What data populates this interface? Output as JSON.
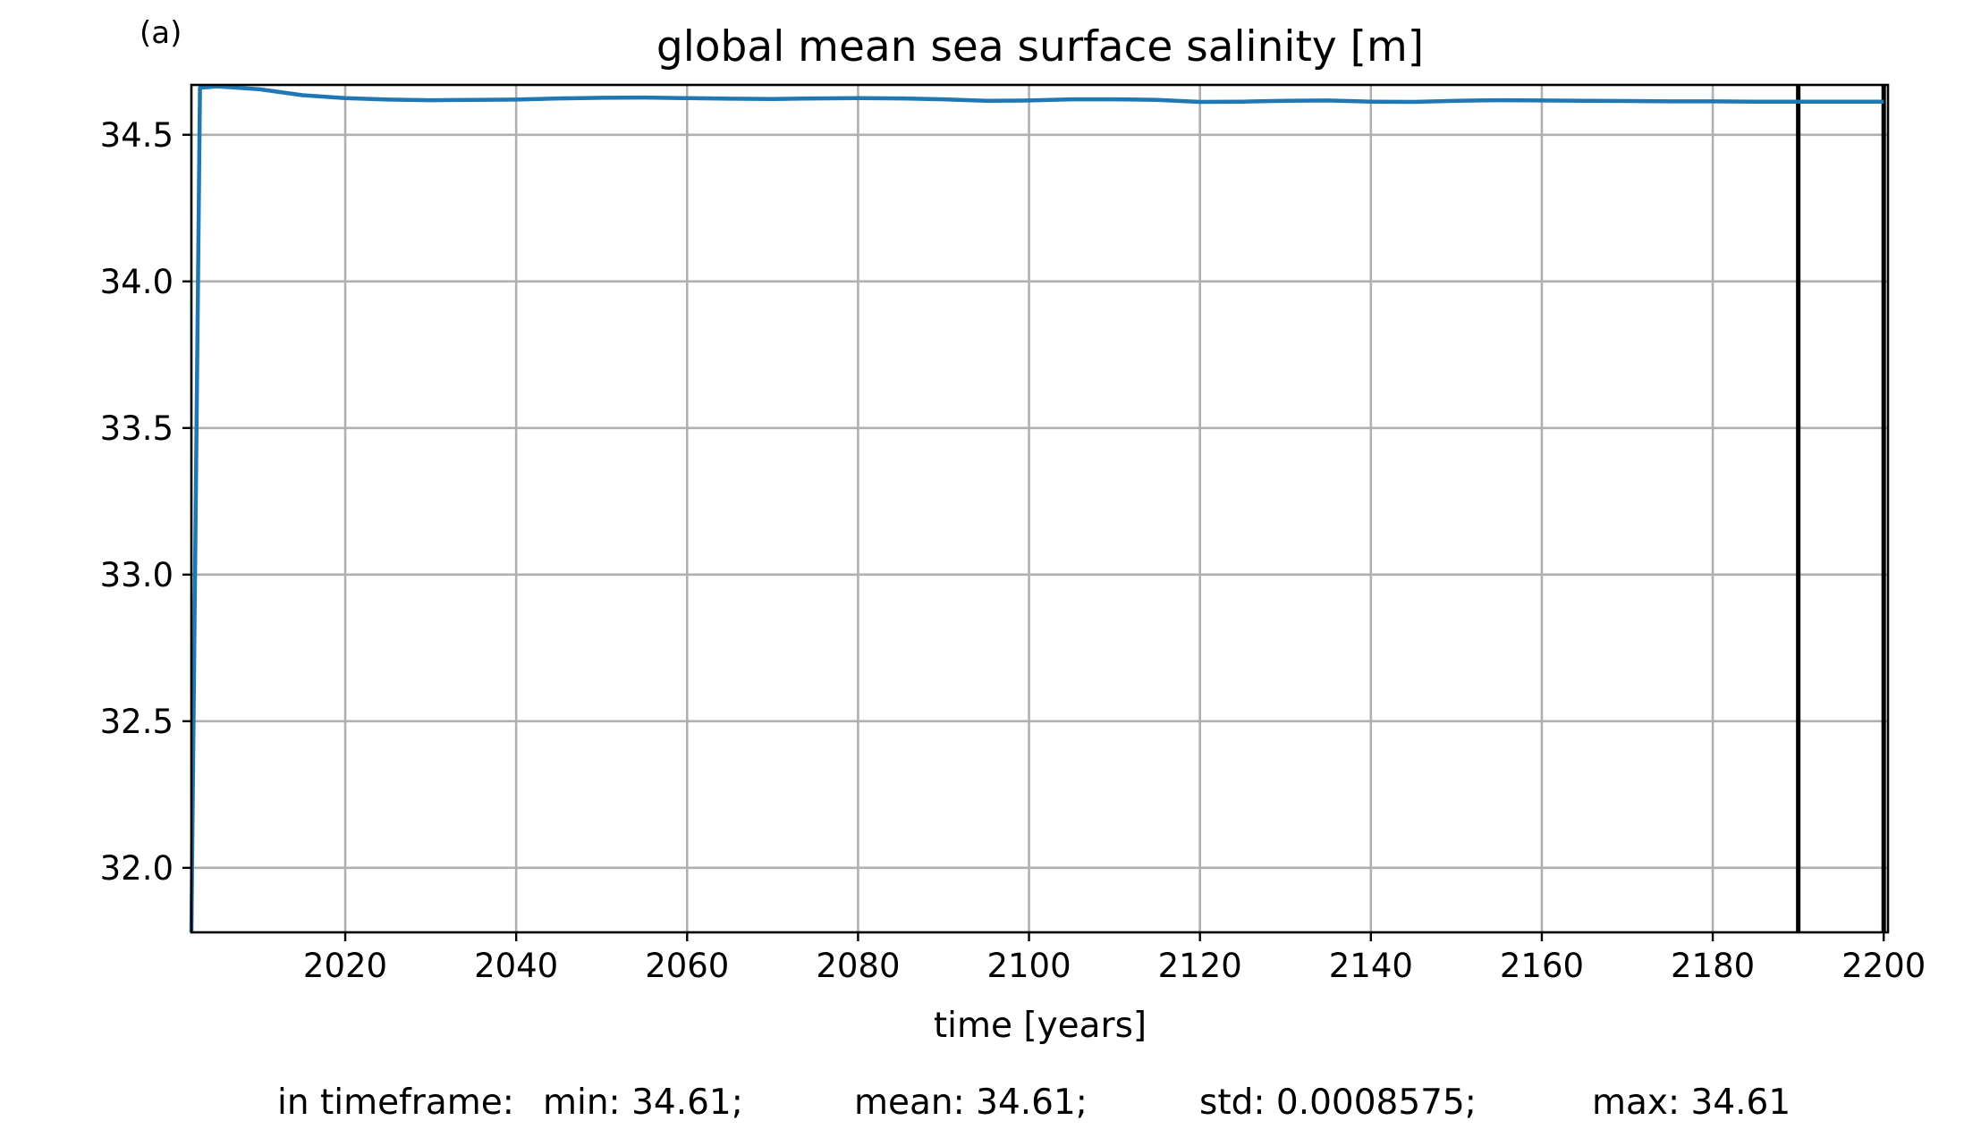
{
  "chart_data": {
    "type": "line",
    "panel_label": "(a)",
    "title": "global mean sea surface salinity [m]",
    "xlabel": "time [years]",
    "ylabel": "",
    "xlim": [
      2002,
      2200.5
    ],
    "ylim": [
      31.78,
      34.67
    ],
    "xticks": [
      2020,
      2040,
      2060,
      2080,
      2100,
      2120,
      2140,
      2160,
      2180,
      2200
    ],
    "yticks": [
      32.0,
      32.5,
      33.0,
      33.5,
      34.0,
      34.5
    ],
    "ytick_labels": [
      "32.0",
      "32.5",
      "33.0",
      "33.5",
      "34.0",
      "34.5"
    ],
    "grid": true,
    "series": [
      {
        "color": "#1f77b4",
        "x": [
          2002,
          2003,
          2005,
          2010,
          2015,
          2020,
          2025,
          2030,
          2035,
          2040,
          2045,
          2050,
          2055,
          2060,
          2065,
          2070,
          2075,
          2080,
          2085,
          2090,
          2095,
          2100,
          2105,
          2110,
          2115,
          2120,
          2125,
          2130,
          2135,
          2140,
          2145,
          2150,
          2155,
          2160,
          2165,
          2170,
          2175,
          2180,
          2185,
          2190,
          2195,
          2200
        ],
        "y": [
          31.78,
          34.66,
          34.665,
          34.655,
          34.635,
          34.625,
          34.62,
          34.618,
          34.619,
          34.62,
          34.624,
          34.626,
          34.627,
          34.625,
          34.623,
          34.622,
          34.624,
          34.625,
          34.624,
          34.621,
          34.616,
          34.617,
          34.621,
          34.621,
          34.619,
          34.612,
          34.613,
          34.616,
          34.617,
          34.613,
          34.612,
          34.616,
          34.618,
          34.617,
          34.616,
          34.615,
          34.614,
          34.614,
          34.613,
          34.613,
          34.613,
          34.613
        ]
      }
    ],
    "vertical_lines": [
      {
        "x": 2190,
        "color": "#000000"
      },
      {
        "x": 2200,
        "color": "#000000"
      }
    ]
  },
  "stats": {
    "prefix": "in timeframe:",
    "min": "min: 34.61;",
    "mean": "mean: 34.61;",
    "std": "std: 0.0008575;",
    "max": "max: 34.61"
  }
}
